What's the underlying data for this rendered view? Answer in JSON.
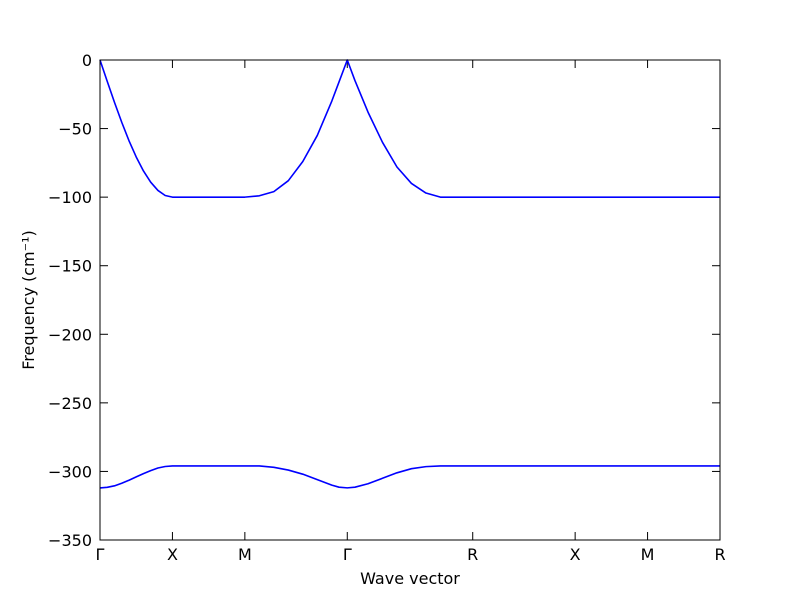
{
  "chart_data": {
    "type": "line",
    "xlabel": "Wave vector",
    "ylabel": "Frequency (cm⁻¹)",
    "x": [
      0,
      0.05,
      0.1,
      0.15,
      0.2,
      0.25,
      0.3,
      0.35,
      0.4,
      0.45,
      0.5,
      0.75,
      1.0,
      1.1,
      1.2,
      1.3,
      1.4,
      1.5,
      1.6,
      1.65,
      1.707,
      1.76,
      1.85,
      1.95,
      2.05,
      2.15,
      2.25,
      2.35,
      2.573,
      3.28,
      3.78,
      4.28
    ],
    "series": [
      {
        "color": "#0000ff",
        "values": [
          0,
          -15.6,
          -30.9,
          -45.4,
          -58.8,
          -70.7,
          -80.9,
          -89.1,
          -95.1,
          -98.8,
          -100,
          -100,
          -100,
          -99,
          -96,
          -88,
          -74,
          -55,
          -30,
          -16,
          0,
          -15,
          -38,
          -60,
          -78,
          -90,
          -97,
          -100,
          -100,
          -100,
          -100,
          -100
        ]
      },
      {
        "color": "#0000ff",
        "values": [
          -312,
          -311.6,
          -310.5,
          -308.6,
          -306.4,
          -304,
          -301.6,
          -299.4,
          -297.5,
          -296.4,
          -296,
          -296,
          -296,
          -296,
          -297,
          -299,
          -302,
          -306,
          -310,
          -311.5,
          -312,
          -311.5,
          -309,
          -305,
          -301,
          -298,
          -296.5,
          -296,
          -296,
          -296,
          -296,
          -296
        ]
      }
    ],
    "xlim": [
      0,
      4.28
    ],
    "xticks": [
      {
        "value": 0,
        "label": "Γ"
      },
      {
        "value": 0.5,
        "label": "X"
      },
      {
        "value": 1.0,
        "label": "M"
      },
      {
        "value": 1.707,
        "label": "Γ"
      },
      {
        "value": 2.573,
        "label": "R"
      },
      {
        "value": 3.28,
        "label": "X"
      },
      {
        "value": 3.78,
        "label": "M"
      },
      {
        "value": 4.28,
        "label": "R"
      }
    ],
    "ylim": [
      -350,
      0
    ],
    "yticks": [
      {
        "value": -350,
        "label": "−350"
      },
      {
        "value": -300,
        "label": "−300"
      },
      {
        "value": -250,
        "label": "−250"
      },
      {
        "value": -200,
        "label": "−200"
      },
      {
        "value": -150,
        "label": "−150"
      },
      {
        "value": -100,
        "label": "−100"
      },
      {
        "value": -50,
        "label": "−50"
      },
      0
    ],
    "grid": false
  }
}
